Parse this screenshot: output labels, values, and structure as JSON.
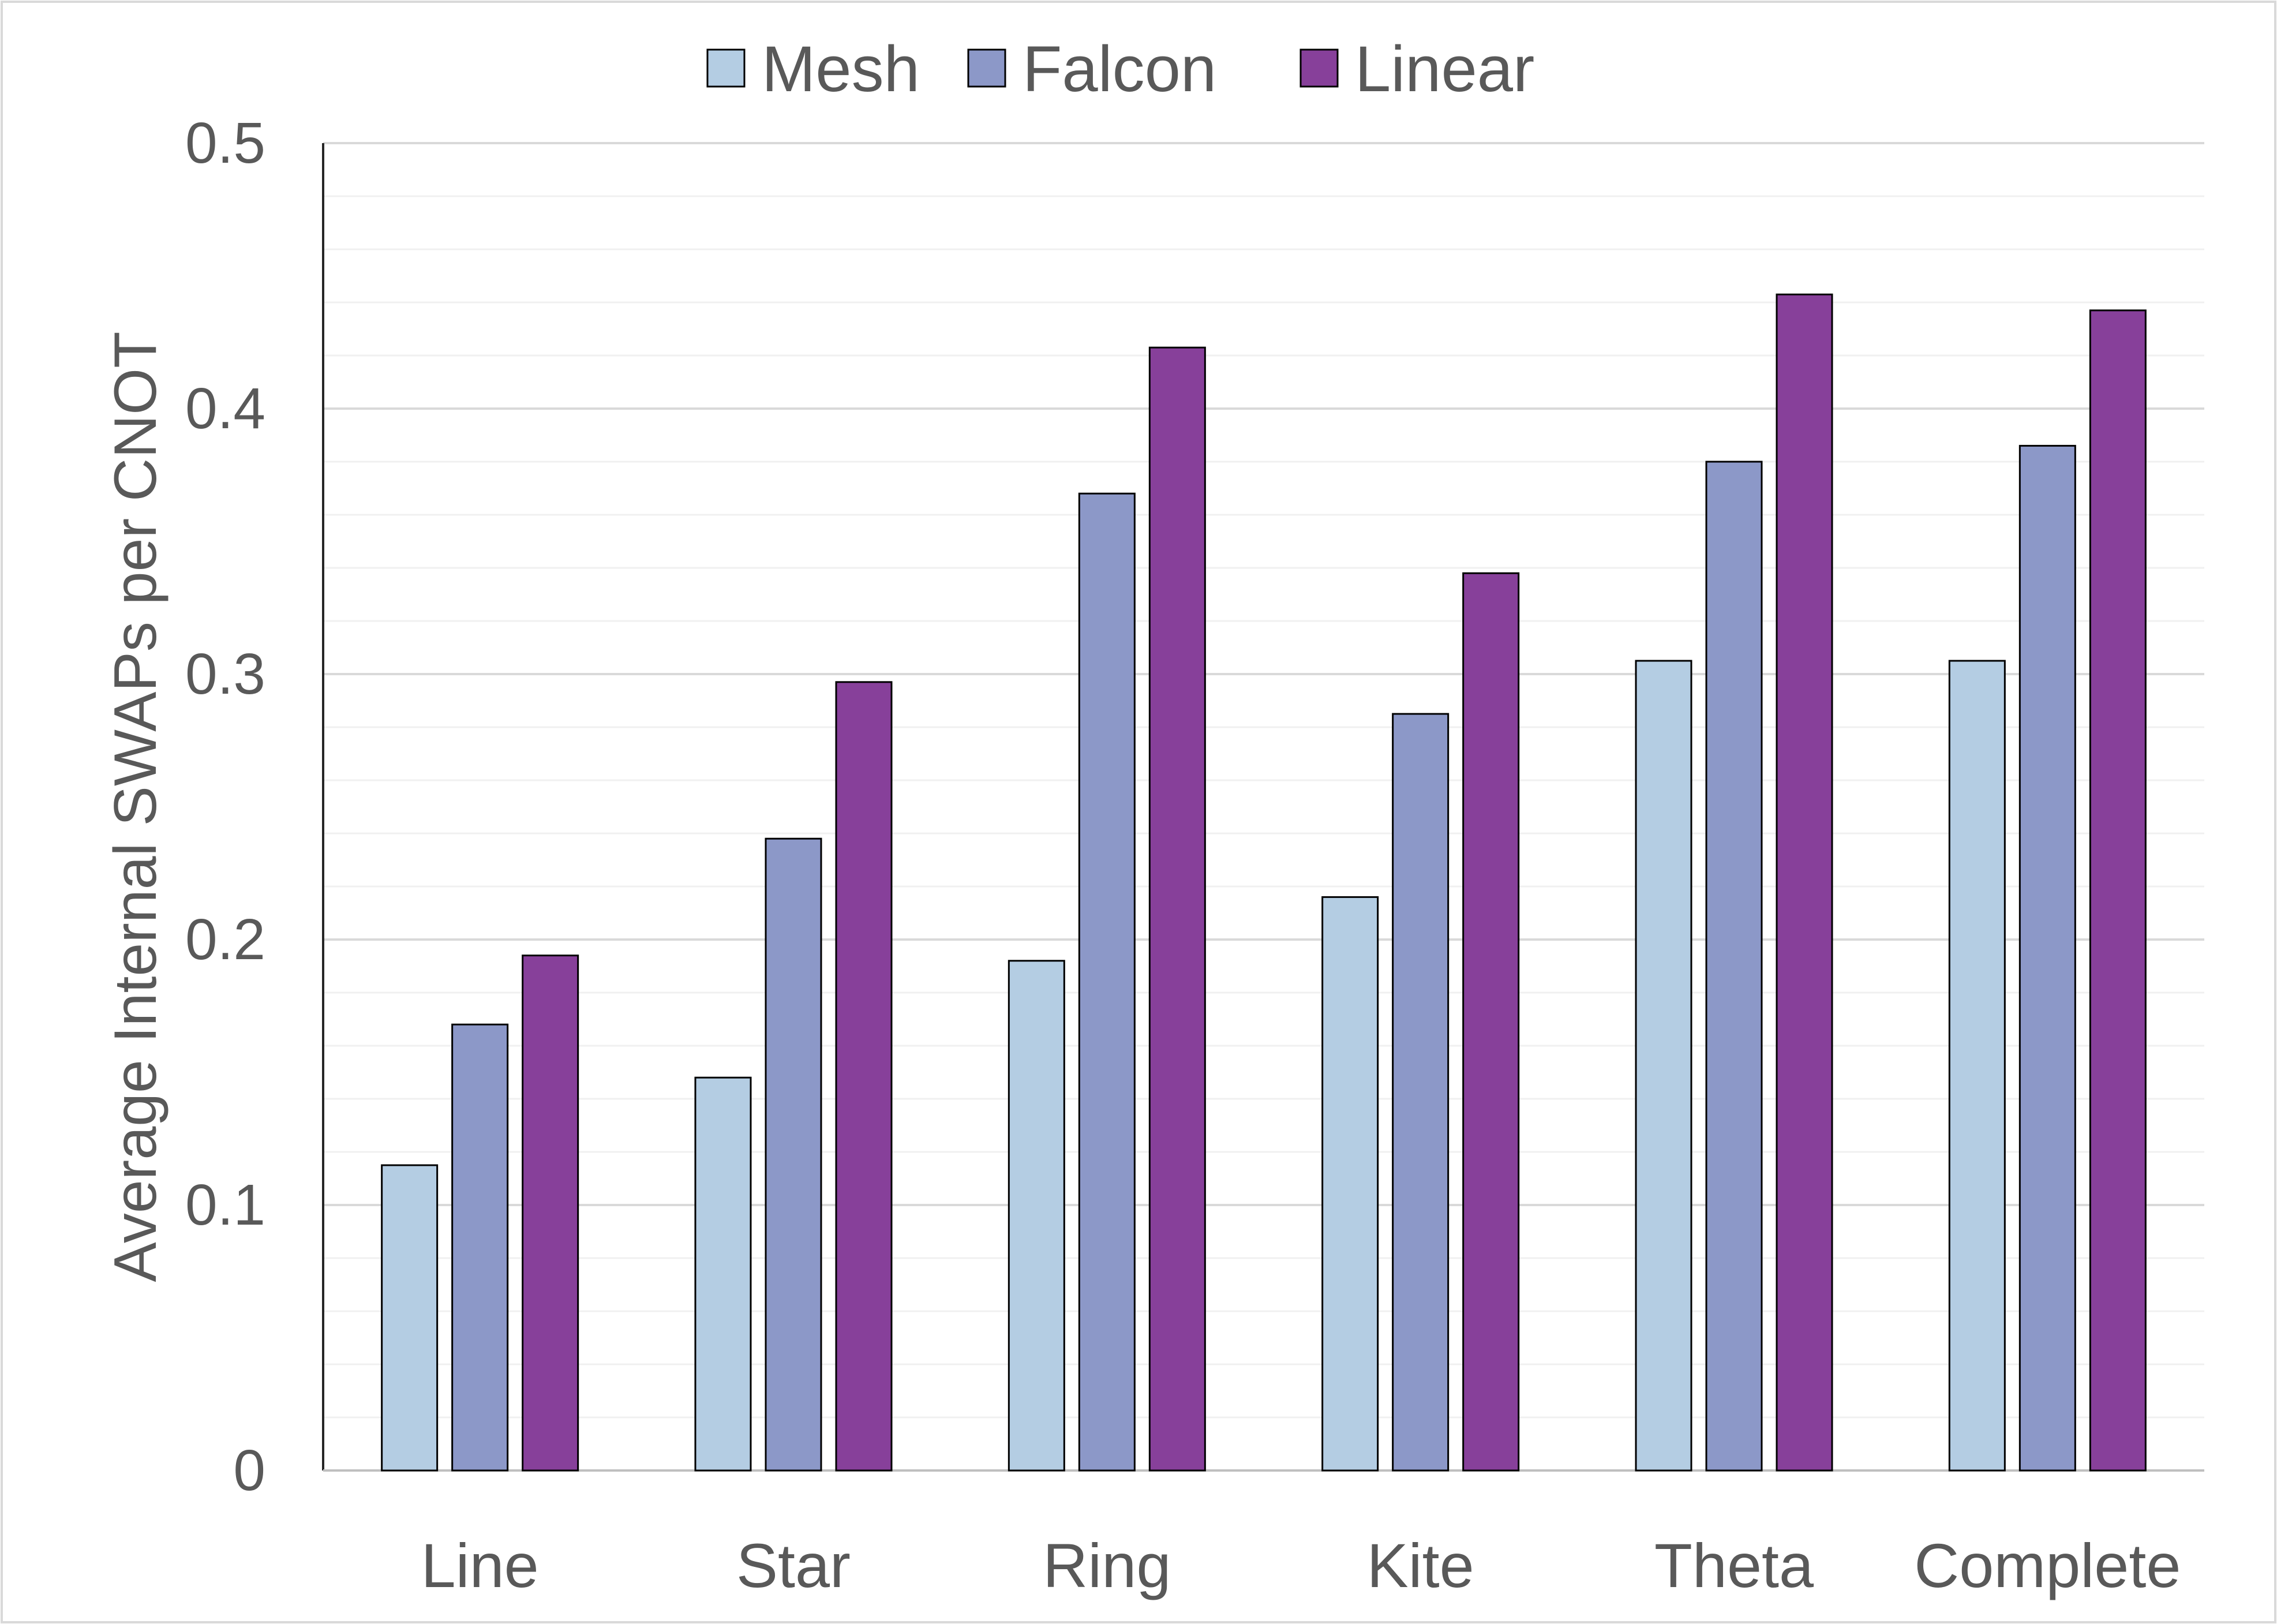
{
  "chart_data": {
    "type": "bar",
    "categories": [
      "Line",
      "Star",
      "Ring",
      "Kite",
      "Theta",
      "Complete"
    ],
    "series": [
      {
        "name": "Mesh",
        "values": [
          0.115,
          0.148,
          0.192,
          0.216,
          0.305,
          0.305
        ]
      },
      {
        "name": "Falcon",
        "values": [
          0.168,
          0.238,
          0.368,
          0.285,
          0.38,
          0.386
        ]
      },
      {
        "name": "Linear",
        "values": [
          0.194,
          0.297,
          0.423,
          0.338,
          0.443,
          0.437
        ]
      }
    ],
    "title": "",
    "xlabel": "",
    "ylabel": "Average Internal SWAPs per CNOT",
    "ylim": [
      0,
      0.5
    ],
    "yticks": [
      "0",
      "0.1",
      "0.2",
      "0.3",
      "0.4",
      "0.5"
    ],
    "ytick_values": [
      0,
      0.1,
      0.2,
      0.3,
      0.4,
      0.5
    ],
    "grid": true,
    "legend": "top-center",
    "colors": {
      "Mesh": "#b4cde3",
      "Falcon": "#8c98c8",
      "Linear": "#87409a"
    }
  }
}
